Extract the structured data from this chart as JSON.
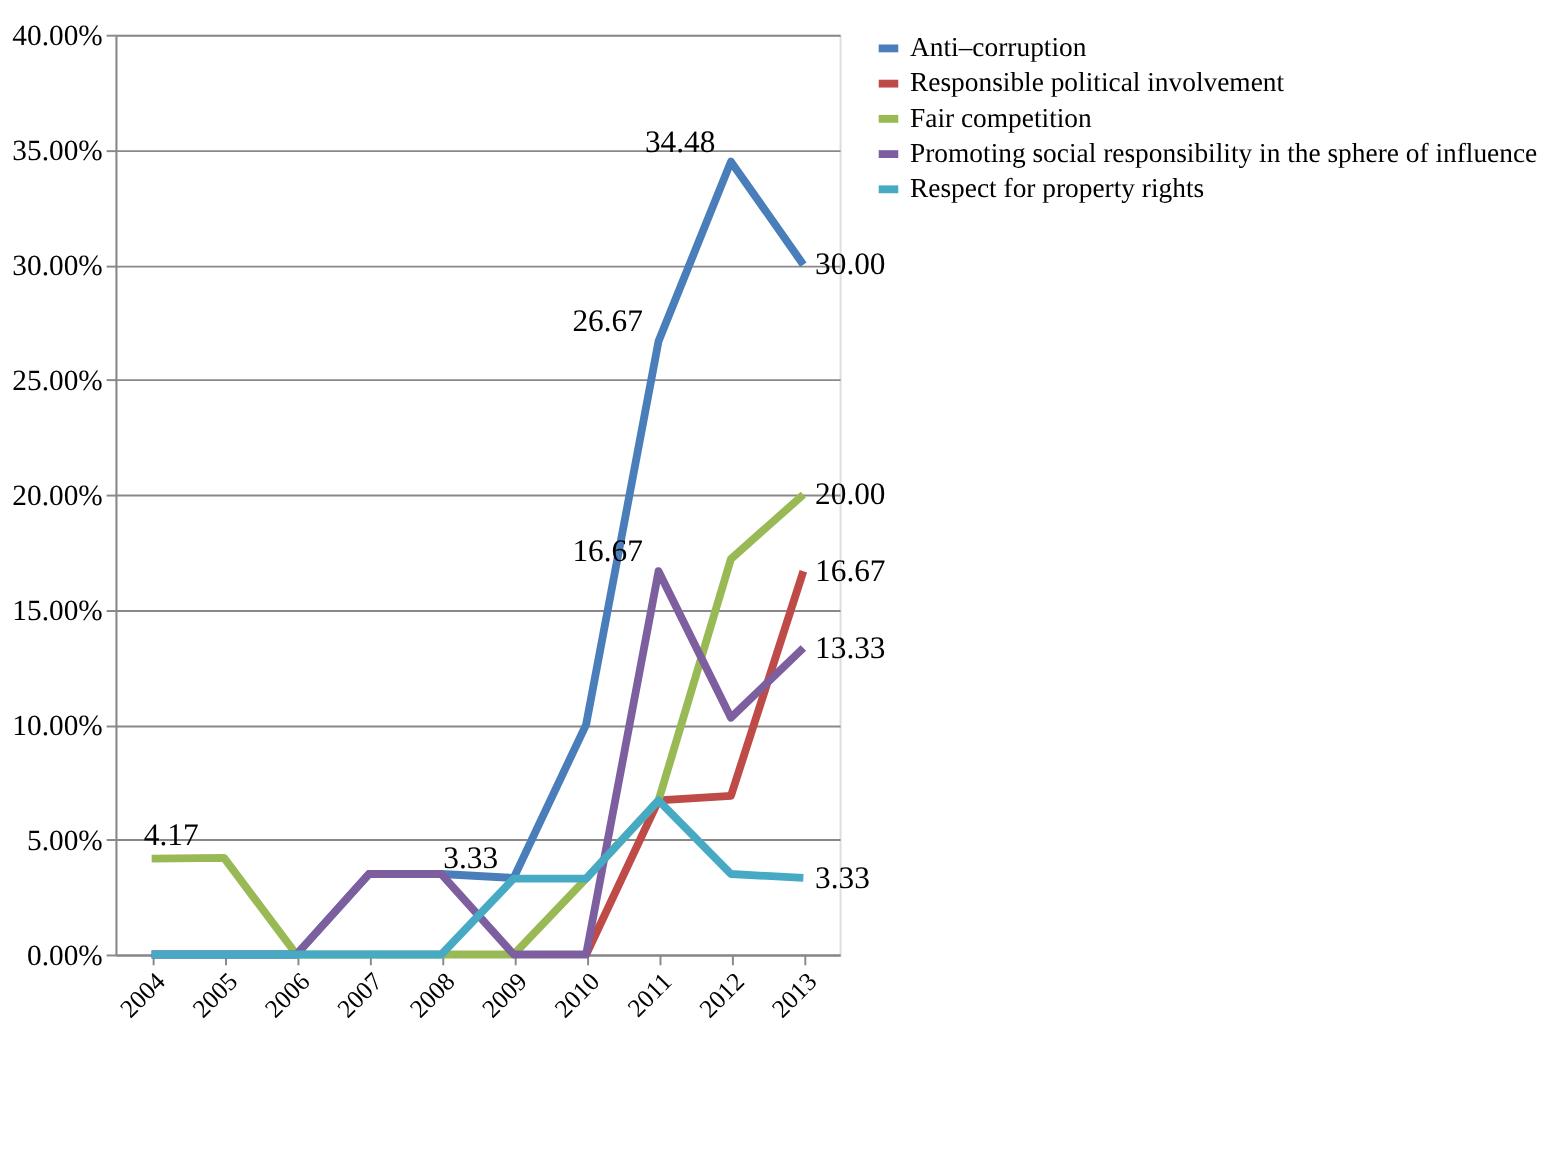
{
  "chart_data": {
    "type": "line",
    "categories": [
      "2004",
      "2005",
      "2006",
      "2007",
      "2008",
      "2009",
      "2010",
      "2011",
      "2012",
      "2013"
    ],
    "series": [
      {
        "name": "Anti–corruption",
        "color": "#4a7ebb",
        "values": [
          0,
          0,
          0,
          3.5,
          3.5,
          3.33,
          10.0,
          26.67,
          34.48,
          30.0
        ],
        "value_labels": [
          null,
          null,
          null,
          null,
          null,
          "3.33",
          null,
          "26.67",
          "34.48",
          "30.00"
        ]
      },
      {
        "name": "Responsible political involvement",
        "color": "#be4b48",
        "values": [
          null,
          null,
          null,
          null,
          null,
          null,
          0,
          6.7,
          6.9,
          16.67
        ],
        "value_labels": [
          null,
          null,
          null,
          null,
          null,
          null,
          null,
          null,
          null,
          "16.67"
        ]
      },
      {
        "name": "Fair competition",
        "color": "#98b954",
        "values": [
          4.17,
          4.2,
          0,
          0,
          0,
          0,
          3.3,
          6.7,
          17.2,
          20.0
        ],
        "value_labels": [
          "4.17",
          null,
          null,
          null,
          null,
          null,
          null,
          null,
          null,
          "20.00"
        ]
      },
      {
        "name": "Promoting social responsibility in the sphere of influence",
        "color": "#7d5fa0",
        "values": [
          0,
          0,
          0,
          3.5,
          3.5,
          0,
          0,
          16.67,
          10.3,
          13.33
        ],
        "value_labels": [
          null,
          null,
          null,
          null,
          null,
          null,
          null,
          "16.67",
          null,
          "13.33"
        ]
      },
      {
        "name": "Respect for property rights",
        "color": "#46aac5",
        "values": [
          0,
          0,
          0,
          0,
          0,
          3.3,
          3.3,
          6.7,
          3.5,
          3.33
        ],
        "value_labels": [
          null,
          null,
          null,
          null,
          null,
          null,
          null,
          null,
          null,
          "3.33"
        ]
      }
    ],
    "ylim": [
      0,
      40
    ],
    "yticks": [
      {
        "value": 0,
        "label": "0.00%"
      },
      {
        "value": 5,
        "label": "5.00%"
      },
      {
        "value": 10,
        "label": "10.00%"
      },
      {
        "value": 15,
        "label": "15.00%"
      },
      {
        "value": 20,
        "label": "20.00%"
      },
      {
        "value": 25,
        "label": "25.00%"
      },
      {
        "value": 30,
        "label": "30.00%"
      },
      {
        "value": 35,
        "label": "35.00%"
      },
      {
        "value": 40,
        "label": "40.00%"
      }
    ],
    "grid": "y",
    "legend": "right",
    "marker": "none",
    "line_style": "solid"
  }
}
